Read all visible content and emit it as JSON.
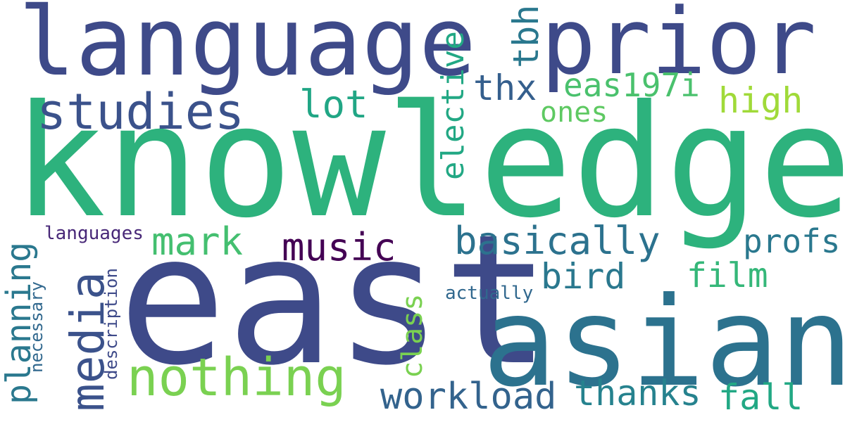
{
  "words": {
    "knowledge": {
      "text": "knowledge",
      "color": "#2db27d"
    },
    "east": {
      "text": "east",
      "color": "#3e4a89"
    },
    "asian": {
      "text": "asian",
      "color": "#2c728e"
    },
    "language": {
      "text": "language",
      "color": "#3e4a89"
    },
    "prior": {
      "text": "prior",
      "color": "#3e4a89"
    },
    "studies": {
      "text": "studies",
      "color": "#3b528b"
    },
    "nothing": {
      "text": "nothing",
      "color": "#7ad151"
    },
    "media": {
      "text": "media",
      "color": "#3b528b"
    },
    "planning": {
      "text": "planning",
      "color": "#2a788e"
    },
    "basically": {
      "text": "basically",
      "color": "#2c728e"
    },
    "workload": {
      "text": "workload",
      "color": "#33638d"
    },
    "thanks": {
      "text": "thanks",
      "color": "#26828e"
    },
    "music": {
      "text": "music",
      "color": "#440154"
    },
    "mark": {
      "text": "mark",
      "color": "#44bf70"
    },
    "bird": {
      "text": "bird",
      "color": "#2a788e"
    },
    "film": {
      "text": "film",
      "color": "#35b779"
    },
    "fall": {
      "text": "fall",
      "color": "#22a884"
    },
    "profs": {
      "text": "profs",
      "color": "#2a788e"
    },
    "elective": {
      "text": "elective",
      "color": "#22a884"
    },
    "eas197i": {
      "text": "eas197i",
      "color": "#4ac16d"
    },
    "high": {
      "text": "high",
      "color": "#a0da39"
    },
    "thx": {
      "text": "thx",
      "color": "#355f8d"
    },
    "tbh": {
      "text": "tbh",
      "color": "#2a788e"
    },
    "lot": {
      "text": "lot",
      "color": "#21a685"
    },
    "ones": {
      "text": "ones",
      "color": "#5ec962"
    },
    "class": {
      "text": "class",
      "color": "#7ad151"
    },
    "actually": {
      "text": "actually",
      "color": "#31688e"
    },
    "languages": {
      "text": "languages",
      "color": "#482878"
    },
    "necessary": {
      "text": "necessary",
      "color": "#31688e"
    },
    "description": {
      "text": "description",
      "color": "#3e4a89"
    }
  }
}
